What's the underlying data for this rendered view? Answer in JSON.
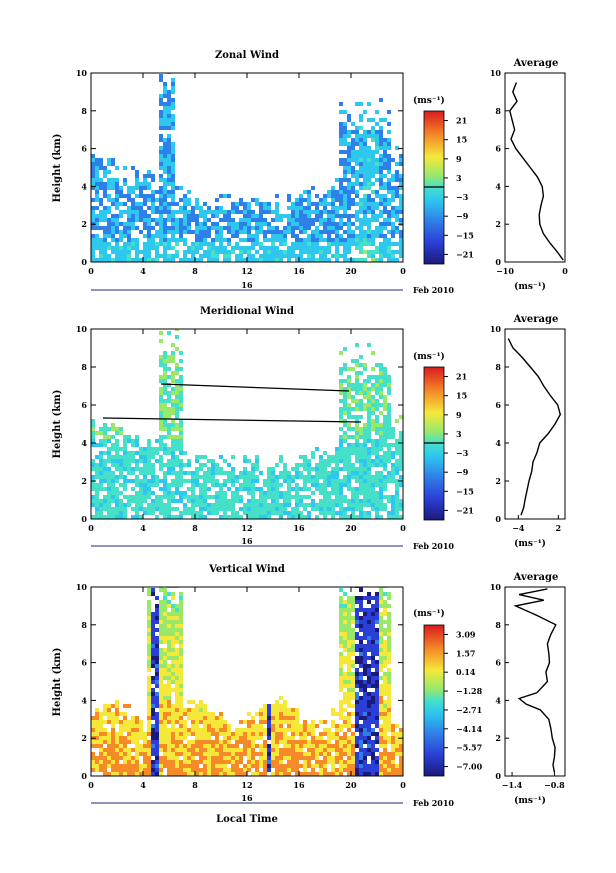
{
  "chart_data": [
    {
      "type": "heatmap",
      "title": "Zonal Wind",
      "ylabel": "Height (km)",
      "xticks": [
        "0",
        "4",
        "8",
        "12",
        "16",
        "20",
        "0"
      ],
      "xlim": [
        0,
        24
      ],
      "ylim": [
        0,
        10
      ],
      "yticks": [
        "0",
        "2",
        "4",
        "6",
        "8",
        "10"
      ],
      "date_label": "16",
      "date_suffix": "Feb 2010",
      "colorbar": {
        "unit": "(ms⁻¹)",
        "ticks": [
          "21",
          "15",
          "9",
          "3",
          "−3",
          "−9",
          "−15",
          "−21"
        ],
        "range": [
          -24,
          24
        ]
      },
      "average": {
        "title": "Average",
        "xlabel": "(ms⁻¹)",
        "xticks": [
          "−10",
          "0"
        ],
        "xlim": [
          -10,
          0
        ],
        "profile": [
          [
            0.1,
            -0.3
          ],
          [
            0.5,
            -1.2
          ],
          [
            1.0,
            -2.5
          ],
          [
            1.5,
            -3.6
          ],
          [
            2.0,
            -4.2
          ],
          [
            2.5,
            -4.3
          ],
          [
            3.0,
            -4.0
          ],
          [
            3.5,
            -3.6
          ],
          [
            4.0,
            -3.8
          ],
          [
            4.5,
            -4.6
          ],
          [
            5.0,
            -5.8
          ],
          [
            5.5,
            -7.0
          ],
          [
            6.0,
            -8.2
          ],
          [
            6.5,
            -9.0
          ],
          [
            7.0,
            -8.4
          ],
          [
            7.5,
            -8.8
          ],
          [
            8.0,
            -9.2
          ],
          [
            8.5,
            -8.0
          ],
          [
            9.0,
            -8.7
          ],
          [
            9.5,
            -8.1
          ]
        ]
      },
      "region": {
        "t": [
          [
            0.4,
            23.8
          ],
          [
            0.3,
            23.6
          ],
          [
            0.4,
            23.9
          ],
          [
            0.6,
            23.8
          ],
          [
            1,
            23.5
          ],
          [
            1.5,
            23.7
          ]
        ],
        "h": [
          0.2,
          6.3
        ]
      }
    },
    {
      "type": "heatmap",
      "title": "Meridional Wind",
      "ylabel": "Height (km)",
      "xticks": [
        "0",
        "4",
        "8",
        "12",
        "16",
        "20",
        "0"
      ],
      "xlim": [
        0,
        24
      ],
      "ylim": [
        0,
        10
      ],
      "yticks": [
        "0",
        "2",
        "4",
        "6",
        "8",
        "10"
      ],
      "date_label": "16",
      "date_suffix": "Feb 2010",
      "colorbar": {
        "unit": "(ms⁻¹)",
        "ticks": [
          "21",
          "15",
          "9",
          "3",
          "−3",
          "−9",
          "−15",
          "−21"
        ],
        "range": [
          -24,
          24
        ]
      },
      "average": {
        "title": "Average",
        "xlabel": "(ms⁻¹)",
        "xticks": [
          "−4",
          "2"
        ],
        "xlim": [
          -6,
          3
        ],
        "profile": [
          [
            0.2,
            -3.6
          ],
          [
            0.6,
            -3.2
          ],
          [
            1.0,
            -3.0
          ],
          [
            1.5,
            -2.7
          ],
          [
            2.0,
            -2.4
          ],
          [
            2.5,
            -2.0
          ],
          [
            3.0,
            -1.8
          ],
          [
            3.5,
            -1.2
          ],
          [
            4.0,
            -0.8
          ],
          [
            4.5,
            0.5
          ],
          [
            5.0,
            1.5
          ],
          [
            5.5,
            2.3
          ],
          [
            6.0,
            1.9
          ],
          [
            6.5,
            0.8
          ],
          [
            7.0,
            -0.2
          ],
          [
            7.5,
            -1.0
          ],
          [
            8.0,
            -2.2
          ],
          [
            8.5,
            -3.4
          ],
          [
            9.0,
            -4.8
          ],
          [
            9.5,
            -5.5
          ]
        ]
      }
    },
    {
      "type": "heatmap",
      "title": "Vertical Wind",
      "ylabel": "Height (km)",
      "xlabel": "Local Time",
      "xticks": [
        "0",
        "4",
        "8",
        "12",
        "16",
        "20",
        "0"
      ],
      "xlim": [
        0,
        24
      ],
      "ylim": [
        0,
        10
      ],
      "yticks": [
        "0",
        "2",
        "4",
        "6",
        "8",
        "10"
      ],
      "date_label": "16",
      "date_suffix": "Feb 2010",
      "colorbar": {
        "unit": "(ms⁻¹)",
        "ticks": [
          "3.09",
          "1.57",
          "0.14",
          "−1.28",
          "−2.71",
          "−4.14",
          "−5.57",
          "−7.00"
        ],
        "range": [
          -7.7,
          3.8
        ]
      },
      "average": {
        "title": "Average",
        "xlabel": "(ms⁻¹)",
        "xticks": [
          "−1.4",
          "−0.8"
        ],
        "xlim": [
          -1.5,
          -0.65
        ],
        "profile": [
          [
            0.2,
            -0.8
          ],
          [
            0.6,
            -0.82
          ],
          [
            1.0,
            -0.8
          ],
          [
            1.5,
            -0.79
          ],
          [
            2.0,
            -0.83
          ],
          [
            2.5,
            -0.85
          ],
          [
            3.0,
            -0.88
          ],
          [
            3.5,
            -1.0
          ],
          [
            3.8,
            -1.2
          ],
          [
            4.1,
            -1.3
          ],
          [
            4.4,
            -1.05
          ],
          [
            5.0,
            -0.9
          ],
          [
            5.5,
            -0.92
          ],
          [
            6.0,
            -0.87
          ],
          [
            6.5,
            -0.88
          ],
          [
            7.0,
            -0.9
          ],
          [
            7.5,
            -0.85
          ],
          [
            8.0,
            -0.78
          ],
          [
            8.5,
            -1.05
          ],
          [
            9.0,
            -1.35
          ],
          [
            9.3,
            -0.95
          ],
          [
            9.6,
            -1.3
          ],
          [
            9.9,
            -0.9
          ]
        ]
      }
    }
  ]
}
